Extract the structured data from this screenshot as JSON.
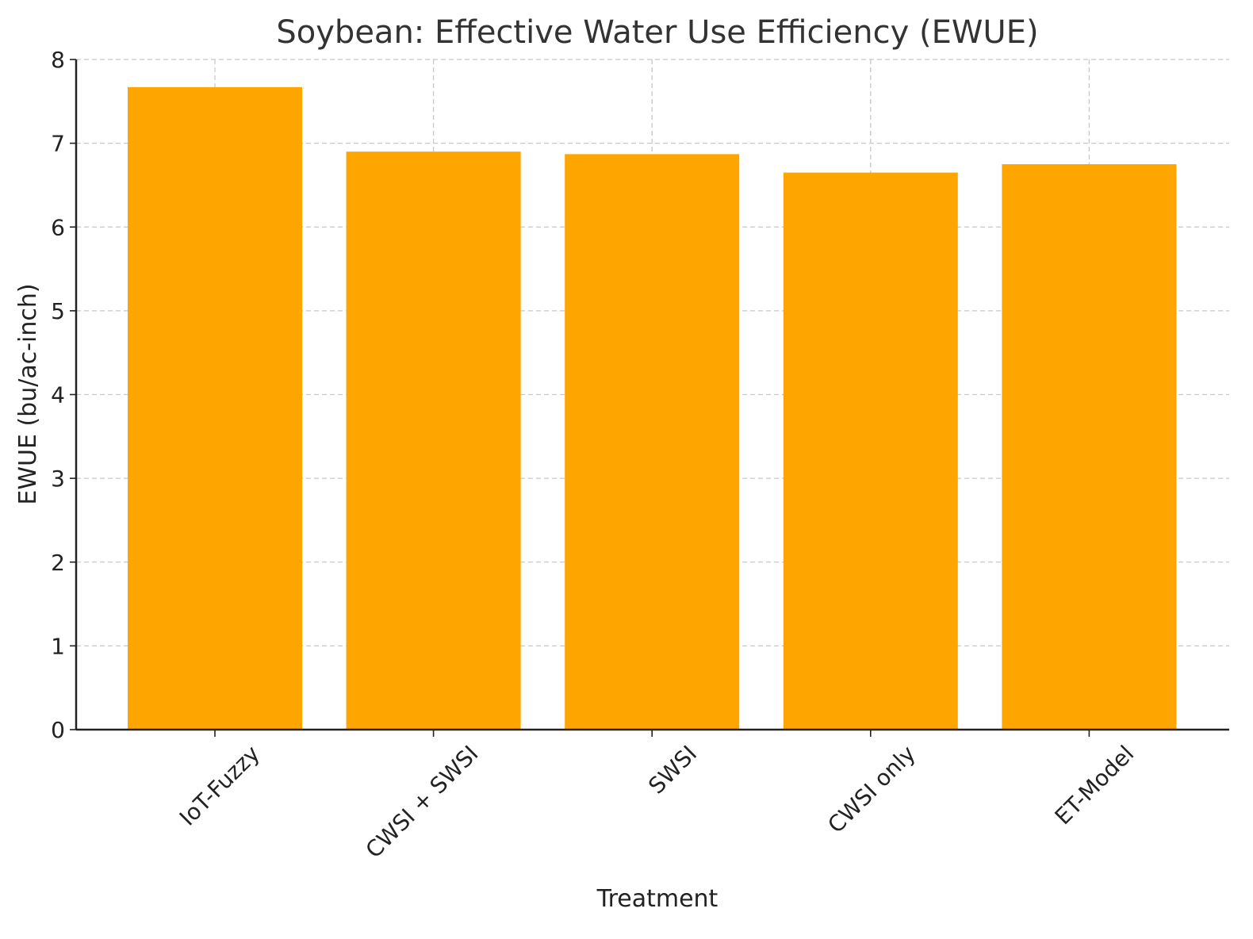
{
  "chart_data": {
    "type": "bar",
    "title": "Soybean: Effective Water Use Efficiency (EWUE)",
    "xlabel": "Treatment",
    "ylabel": "EWUE (bu/ac-inch)",
    "categories": [
      "IoT-Fuzzy",
      "CWSI + SWSI",
      "SWSI",
      "CWSI only",
      "ET-Model"
    ],
    "values": [
      7.67,
      6.9,
      6.87,
      6.65,
      6.75
    ],
    "ylim": [
      0,
      8
    ],
    "yticks": [
      "0",
      "1",
      "2",
      "3",
      "4",
      "5",
      "6",
      "7",
      "8"
    ],
    "grid": true,
    "bar_color": "#FFA500"
  }
}
